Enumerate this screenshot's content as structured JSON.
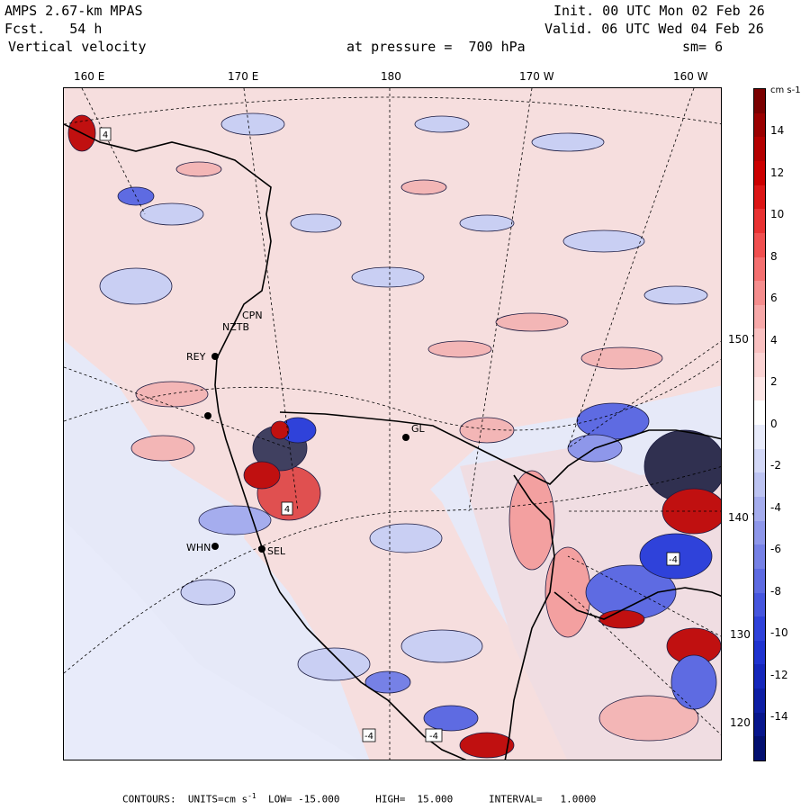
{
  "header": {
    "title": "AMPS 2.67-km MPAS",
    "forecast": "Fcst.   54 h",
    "field": "Vertical velocity",
    "init": "Init. 00 UTC Mon 02 Feb 26",
    "valid": "Valid. 06 UTC Wed 04 Feb 26",
    "pressure": "at pressure =  700 hPa",
    "smoothing": "sm= 6"
  },
  "longitude_labels": [
    "160 E",
    "170 E",
    "180",
    "170 W",
    "160 W"
  ],
  "latitude_labels": [
    "150 W",
    "140 W",
    "130 W",
    "120 W"
  ],
  "stations": [
    {
      "label": "CPN"
    },
    {
      "label": "NZTB"
    },
    {
      "label": "REY"
    },
    {
      "label": "GL"
    },
    {
      "label": "WHN"
    },
    {
      "label": "SEL"
    }
  ],
  "box_labels": [
    "4",
    "4",
    "-4",
    "-4",
    "-4"
  ],
  "colorbar": {
    "units": "cm s-1",
    "ticks": [
      "14",
      "12",
      "10",
      "8",
      "6",
      "4",
      "2",
      "0",
      "-2",
      "-4",
      "-6",
      "-8",
      "-10",
      "-12",
      "-14"
    ],
    "colors": [
      "#7a0000",
      "#9a0000",
      "#b40000",
      "#cc0000",
      "#dc1616",
      "#e83232",
      "#f05050",
      "#f47070",
      "#f58d8d",
      "#f7a8a8",
      "#f9c0c0",
      "#fbd3d3",
      "#fde6e6",
      "#ffffff",
      "#e8ebfb",
      "#d3d8f7",
      "#bdc4f2",
      "#a5adee",
      "#8e97ea",
      "#7681e6",
      "#5e6be2",
      "#4656de",
      "#2f42da",
      "#1f33d0",
      "#1527bb",
      "#0d1ea4",
      "#07168c",
      "#031070"
    ]
  },
  "footer": {
    "contours": "CONTOURS:  UNITS=cm s",
    "low": "LOW= -15.000",
    "high": "HIGH=  15.000",
    "interval": "INTERVAL=   1.0000"
  },
  "colors": {
    "background_ocean": "#e3e6f7",
    "positive_light": "#f9d3d3",
    "negative_light": "#c9cff3",
    "positive_strong": "#c01010",
    "negative_strong": "#1a2bd0"
  }
}
